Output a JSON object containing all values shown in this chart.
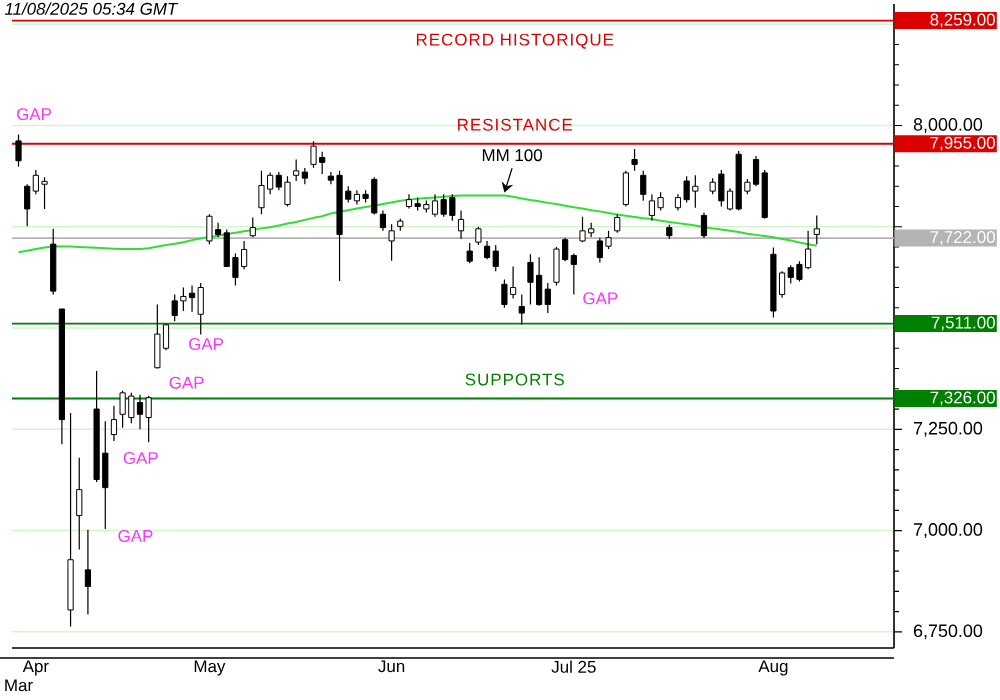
{
  "chart_data": {
    "type": "candlestick",
    "title": "11/08/2025 05:34 GMT",
    "categories": [
      "Mar",
      null,
      "Apr",
      null,
      null,
      null,
      null,
      null,
      null,
      null,
      null,
      null,
      null,
      null,
      null,
      null,
      null,
      null,
      null,
      null,
      null,
      null,
      "May",
      null,
      null,
      null,
      null,
      null,
      null,
      null,
      null,
      null,
      null,
      null,
      null,
      null,
      null,
      null,
      null,
      null,
      null,
      null,
      null,
      "Jun",
      null,
      null,
      null,
      null,
      null,
      null,
      null,
      null,
      null,
      null,
      null,
      null,
      null,
      null,
      null,
      null,
      null,
      null,
      null,
      null,
      "Jul 25",
      null,
      null,
      null,
      null,
      null,
      null,
      null,
      null,
      null,
      null,
      null,
      null,
      null,
      null,
      null,
      null,
      null,
      null,
      null,
      null,
      null,
      null,
      "Aug",
      null,
      null,
      null,
      null,
      null
    ],
    "ohlc": [
      [
        7962,
        7978,
        7898,
        7913
      ],
      [
        7850,
        7855,
        7751,
        7794
      ],
      [
        7838,
        7890,
        7830,
        7877
      ],
      [
        7855,
        7872,
        7794,
        7862
      ],
      [
        7707,
        7745,
        7583,
        7591
      ],
      [
        7547,
        7547,
        7213,
        7274
      ],
      [
        6804,
        7290,
        6763,
        6928
      ],
      [
        7037,
        7180,
        6953,
        7101
      ],
      [
        6903,
        7002,
        6793,
        6862
      ],
      [
        7300,
        7394,
        7120,
        7126
      ],
      [
        7191,
        7270,
        7004,
        7106
      ],
      [
        7237,
        7308,
        7221,
        7274
      ],
      [
        7287,
        7345,
        7254,
        7340
      ],
      [
        7279,
        7340,
        7265,
        7332
      ],
      [
        7316,
        7335,
        7250,
        7287
      ],
      [
        7279,
        7333,
        7218,
        7328
      ],
      [
        7402,
        7558,
        7400,
        7485
      ],
      [
        7450,
        7510,
        7445,
        7508
      ],
      [
        7567,
        7583,
        7517,
        7531
      ],
      [
        7567,
        7600,
        7542,
        7578
      ],
      [
        7586,
        7605,
        7540,
        7575
      ],
      [
        7534,
        7611,
        7484,
        7600
      ],
      [
        7715,
        7781,
        7707,
        7776
      ],
      [
        7743,
        7760,
        7725,
        7731
      ],
      [
        7735,
        7743,
        7652,
        7652
      ],
      [
        7674,
        7684,
        7605,
        7625
      ],
      [
        7652,
        7715,
        7645,
        7694
      ],
      [
        7728,
        7773,
        7724,
        7748
      ],
      [
        7797,
        7888,
        7781,
        7852
      ],
      [
        7843,
        7884,
        7830,
        7877
      ],
      [
        7877,
        7885,
        7840,
        7848
      ],
      [
        7805,
        7875,
        7800,
        7860
      ],
      [
        7877,
        7916,
        7863,
        7888
      ],
      [
        7885,
        7895,
        7855,
        7870
      ],
      [
        7904,
        7961,
        7896,
        7949
      ],
      [
        7921,
        7935,
        7880,
        7909
      ],
      [
        7875,
        7885,
        7855,
        7865
      ],
      [
        7877,
        7888,
        7616,
        7731
      ],
      [
        7838,
        7850,
        7810,
        7818
      ],
      [
        7814,
        7840,
        7805,
        7830
      ],
      [
        7830,
        7840,
        7810,
        7820
      ],
      [
        7867,
        7872,
        7780,
        7784
      ],
      [
        7781,
        7790,
        7740,
        7748
      ],
      [
        7715,
        7756,
        7666,
        7740
      ],
      [
        7751,
        7770,
        7740,
        7764
      ],
      [
        7800,
        7830,
        7795,
        7817
      ],
      [
        7807,
        7822,
        7790,
        7800
      ],
      [
        7794,
        7815,
        7785,
        7805
      ],
      [
        7781,
        7830,
        7775,
        7814
      ],
      [
        7817,
        7830,
        7775,
        7781
      ],
      [
        7822,
        7830,
        7765,
        7778
      ],
      [
        7740,
        7790,
        7720,
        7768
      ],
      [
        7690,
        7710,
        7660,
        7665
      ],
      [
        7712,
        7750,
        7705,
        7745
      ],
      [
        7702,
        7715,
        7670,
        7674
      ],
      [
        7690,
        7705,
        7640,
        7652
      ],
      [
        7608,
        7620,
        7550,
        7558
      ],
      [
        7583,
        7652,
        7573,
        7600
      ],
      [
        7553,
        7583,
        7509,
        7537
      ],
      [
        7662,
        7682,
        7558,
        7613
      ],
      [
        7630,
        7675,
        7555,
        7558
      ],
      [
        7596,
        7611,
        7537,
        7558
      ],
      [
        7613,
        7700,
        7605,
        7695
      ],
      [
        7718,
        7723,
        7665,
        7669
      ],
      [
        7679,
        7684,
        7583,
        7657
      ],
      [
        7715,
        7775,
        7712,
        7740
      ],
      [
        7735,
        7760,
        7725,
        7745
      ],
      [
        7715,
        7723,
        7662,
        7674
      ],
      [
        7702,
        7740,
        7695,
        7723
      ],
      [
        7740,
        7781,
        7735,
        7773
      ],
      [
        7805,
        7888,
        7800,
        7883
      ],
      [
        7916,
        7942,
        7888,
        7904
      ],
      [
        7877,
        7888,
        7814,
        7830
      ],
      [
        7778,
        7830,
        7765,
        7814
      ],
      [
        7797,
        7835,
        7790,
        7822
      ],
      [
        7748,
        7755,
        7720,
        7728
      ],
      [
        7797,
        7830,
        7790,
        7822
      ],
      [
        7863,
        7875,
        7810,
        7817
      ],
      [
        7838,
        7877,
        7797,
        7850
      ],
      [
        7778,
        7785,
        7722,
        7728
      ],
      [
        7838,
        7870,
        7830,
        7860
      ],
      [
        7880,
        7890,
        7800,
        7814
      ],
      [
        7794,
        7845,
        7790,
        7838
      ],
      [
        7929,
        7937,
        7790,
        7794
      ],
      [
        7838,
        7868,
        7830,
        7860
      ],
      [
        7916,
        7925,
        7850,
        7855
      ],
      [
        7883,
        7890,
        7770,
        7773
      ],
      [
        7682,
        7699,
        7526,
        7542
      ],
      [
        7583,
        7640,
        7575,
        7636
      ],
      [
        7649,
        7655,
        7610,
        7625
      ],
      [
        7657,
        7665,
        7615,
        7620
      ],
      [
        7649,
        7740,
        7645,
        7695
      ],
      [
        7731,
        7778,
        7707,
        7745
      ]
    ],
    "series": [
      {
        "name": "MM 100",
        "type": "line",
        "color": "#33dd33",
        "values": [
          7687,
          7691,
          7695,
          7699,
          7702,
          7701,
          7701,
          7700,
          7699,
          7698,
          7697,
          7696,
          7695,
          7695,
          7695,
          7697,
          7701,
          7705,
          7708,
          7712,
          7717,
          7721,
          7725,
          7728,
          7732,
          7735,
          7739,
          7742,
          7746,
          7749,
          7753,
          7758,
          7762,
          7767,
          7772,
          7776,
          7783,
          7787,
          7791,
          7795,
          7799,
          7802,
          7806,
          7810,
          7814,
          7817,
          7819,
          7821,
          7822,
          7824,
          7826,
          7827,
          7827,
          7827,
          7827,
          7827,
          7827,
          7824,
          7820,
          7816,
          7813,
          7809,
          7806,
          7802,
          7798,
          7795,
          7791,
          7788,
          7784,
          7780,
          7777,
          7774,
          7771,
          7769,
          7765,
          7762,
          7759,
          7756,
          7753,
          7749,
          7746,
          7743,
          7740,
          7737,
          7733,
          7730,
          7727,
          7724,
          7720,
          7716,
          7711,
          7707,
          7703
        ]
      }
    ],
    "ylim": [
      6710,
      8300
    ],
    "yticks": [
      {
        "value": 6750,
        "label": "6,750.00"
      },
      {
        "value": 7000,
        "label": "7,000.00"
      },
      {
        "value": 7250,
        "label": "7,250.00"
      },
      {
        "value": 7500,
        "label": null
      },
      {
        "value": 7750,
        "label": null
      },
      {
        "value": 8000,
        "label": "8,000.00"
      },
      {
        "value": 8250,
        "label": null
      }
    ],
    "grid": "y",
    "marker": "none",
    "ref_lines": [
      {
        "axis": "y",
        "value": 8259,
        "label": "8,259.00",
        "color": "#dd0000"
      },
      {
        "axis": "y",
        "value": 7955,
        "label": "7,955.00",
        "color": "#dd0000"
      },
      {
        "axis": "y",
        "value": 7722,
        "label": "7,722.00",
        "color": "#b4b4b4"
      },
      {
        "axis": "y",
        "value": 7511,
        "label": "7,511.00",
        "color": "#008000"
      },
      {
        "axis": "y",
        "value": 7326,
        "label": "7,326.00",
        "color": "#008000"
      }
    ],
    "annotations": [
      {
        "text": "RECORD HISTORIQUE",
        "y": 8259
      },
      {
        "text": "RESISTANCE",
        "y": 7955
      },
      {
        "text": "SUPPORTS",
        "y": 7326
      },
      "GAP",
      "GAP",
      "GAP",
      "GAP",
      "GAP",
      "GAP"
    ]
  }
}
